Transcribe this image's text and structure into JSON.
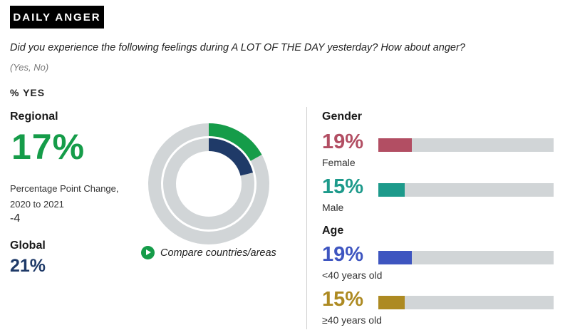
{
  "header": {
    "tag": "DAILY ANGER"
  },
  "question": "Did you experience the following feelings during A LOT OF THE DAY yesterday? How about anger?",
  "options": "(Yes, No)",
  "measure": "% YES",
  "regional": {
    "label": "Regional",
    "value": "17%",
    "change_label": "Percentage Point Change, 2020 to 2021",
    "change_value": "-4"
  },
  "global": {
    "label": "Global",
    "value": "21%"
  },
  "compare": {
    "label": "Compare countries/areas"
  },
  "colors": {
    "regional": "#159c49",
    "global": "#1f3a68",
    "track": "#d1d5d7",
    "female": "#b24e63",
    "male": "#1d9a8b",
    "under40": "#3e55c0",
    "over40": "#ad8a22"
  },
  "chart_data": [
    {
      "type": "pie",
      "title": "",
      "series": [
        {
          "name": "Regional",
          "value": 17
        },
        {
          "name": "Global",
          "value": 21
        }
      ]
    },
    {
      "type": "bar",
      "title": "Gender",
      "categories": [
        "Female",
        "Male"
      ],
      "values": [
        19,
        15
      ],
      "labels": [
        "19%",
        "15%"
      ],
      "ylim": [
        0,
        100
      ]
    },
    {
      "type": "bar",
      "title": "Age",
      "categories": [
        "<40 years old",
        "≥40 years old"
      ],
      "values": [
        19,
        15
      ],
      "labels": [
        "19%",
        "15%"
      ],
      "ylim": [
        0,
        100
      ]
    }
  ]
}
